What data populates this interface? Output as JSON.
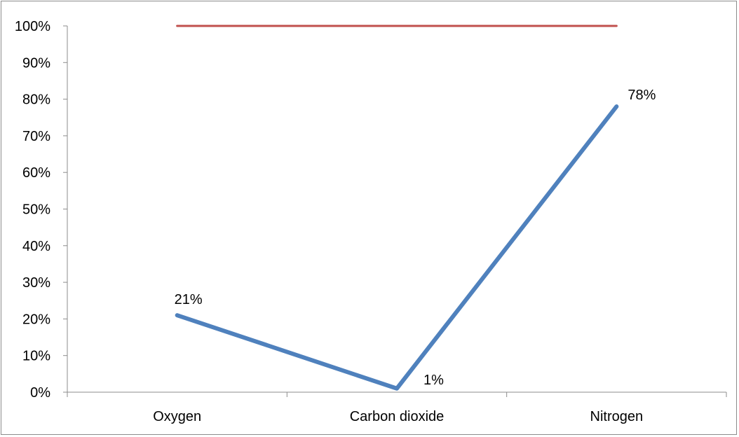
{
  "chart_data": {
    "type": "line",
    "categories": [
      "Oxygen",
      "Carbon dioxide",
      "Nitrogen"
    ],
    "series": [
      {
        "values": [
          0.21,
          0.01,
          0.78
        ],
        "color": "#4f81bd",
        "data_labels": [
          "21%",
          "1%",
          "78%"
        ]
      },
      {
        "values": [
          1.0,
          1.0,
          1.0
        ],
        "color": "#c0504d"
      }
    ],
    "ylim": [
      0,
      1
    ],
    "y_ticks": [
      {
        "value": 0,
        "label": "0%"
      },
      {
        "value": 0.1,
        "label": "10%"
      },
      {
        "value": 0.2,
        "label": "20%"
      },
      {
        "value": 0.3,
        "label": "30%"
      },
      {
        "value": 0.4,
        "label": "40%"
      },
      {
        "value": 0.5,
        "label": "50%"
      },
      {
        "value": 0.6,
        "label": "60%"
      },
      {
        "value": 0.7,
        "label": "70%"
      },
      {
        "value": 0.8,
        "label": "80%"
      },
      {
        "value": 0.9,
        "label": "90%"
      },
      {
        "value": 1.0,
        "label": "100%"
      }
    ],
    "grid": false,
    "legend": "none"
  }
}
